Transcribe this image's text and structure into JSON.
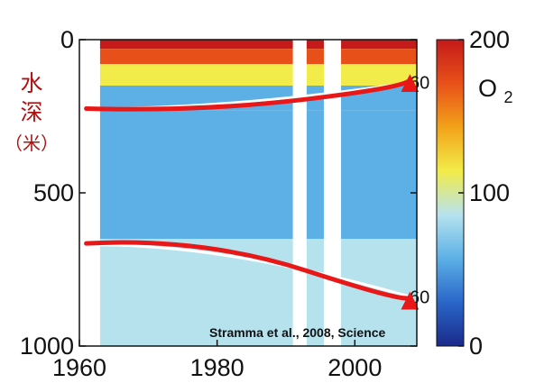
{
  "chart_data": {
    "type": "heatmap",
    "title": "",
    "xlabel": "",
    "ylabel_lines": [
      "水",
      "深",
      "（米）"
    ],
    "x_ticks": [
      "1960",
      "1980",
      "2000"
    ],
    "y_ticks": [
      "0",
      "500",
      "1000"
    ],
    "xlim": [
      1960,
      2009
    ],
    "ylim": [
      0,
      1000
    ],
    "y_inverted": true,
    "grid": false,
    "colorbar": {
      "label_main": "O",
      "label_sub": "2",
      "ticks": [
        "0",
        "100",
        "200"
      ],
      "range": [
        0,
        200
      ],
      "colors": [
        "#1a2a8a",
        "#2a66c8",
        "#5cb0e6",
        "#b6e2ee",
        "#f2ec4a",
        "#f2a21a",
        "#e8501a",
        "#c41a1a"
      ]
    },
    "depth_bands_upper_m": [
      0,
      30,
      80,
      150,
      230,
      500,
      650,
      1000
    ],
    "band_values_umol_kg": [
      190,
      160,
      110,
      70,
      45,
      55,
      75
    ],
    "gaps_years": [
      [
        1960,
        1963
      ],
      [
        1991,
        1993
      ],
      [
        1995.5,
        1998
      ]
    ],
    "contours": [
      {
        "label": "60",
        "depth_start_m": 225,
        "depth_end_m": 140,
        "label_side": "right"
      },
      {
        "label": "60",
        "depth_start_m": 670,
        "depth_end_m": 840,
        "label_side": "right"
      }
    ],
    "arrows": [
      {
        "from": [
          1961,
          225
        ],
        "via": [
          1978,
          235
        ],
        "to": [
          2008,
          130
        ]
      },
      {
        "from": [
          1961,
          665
        ],
        "via": [
          1978,
          645
        ],
        "to": [
          2008,
          840
        ]
      }
    ],
    "citation": "Stramma et al., 2008, Science"
  }
}
